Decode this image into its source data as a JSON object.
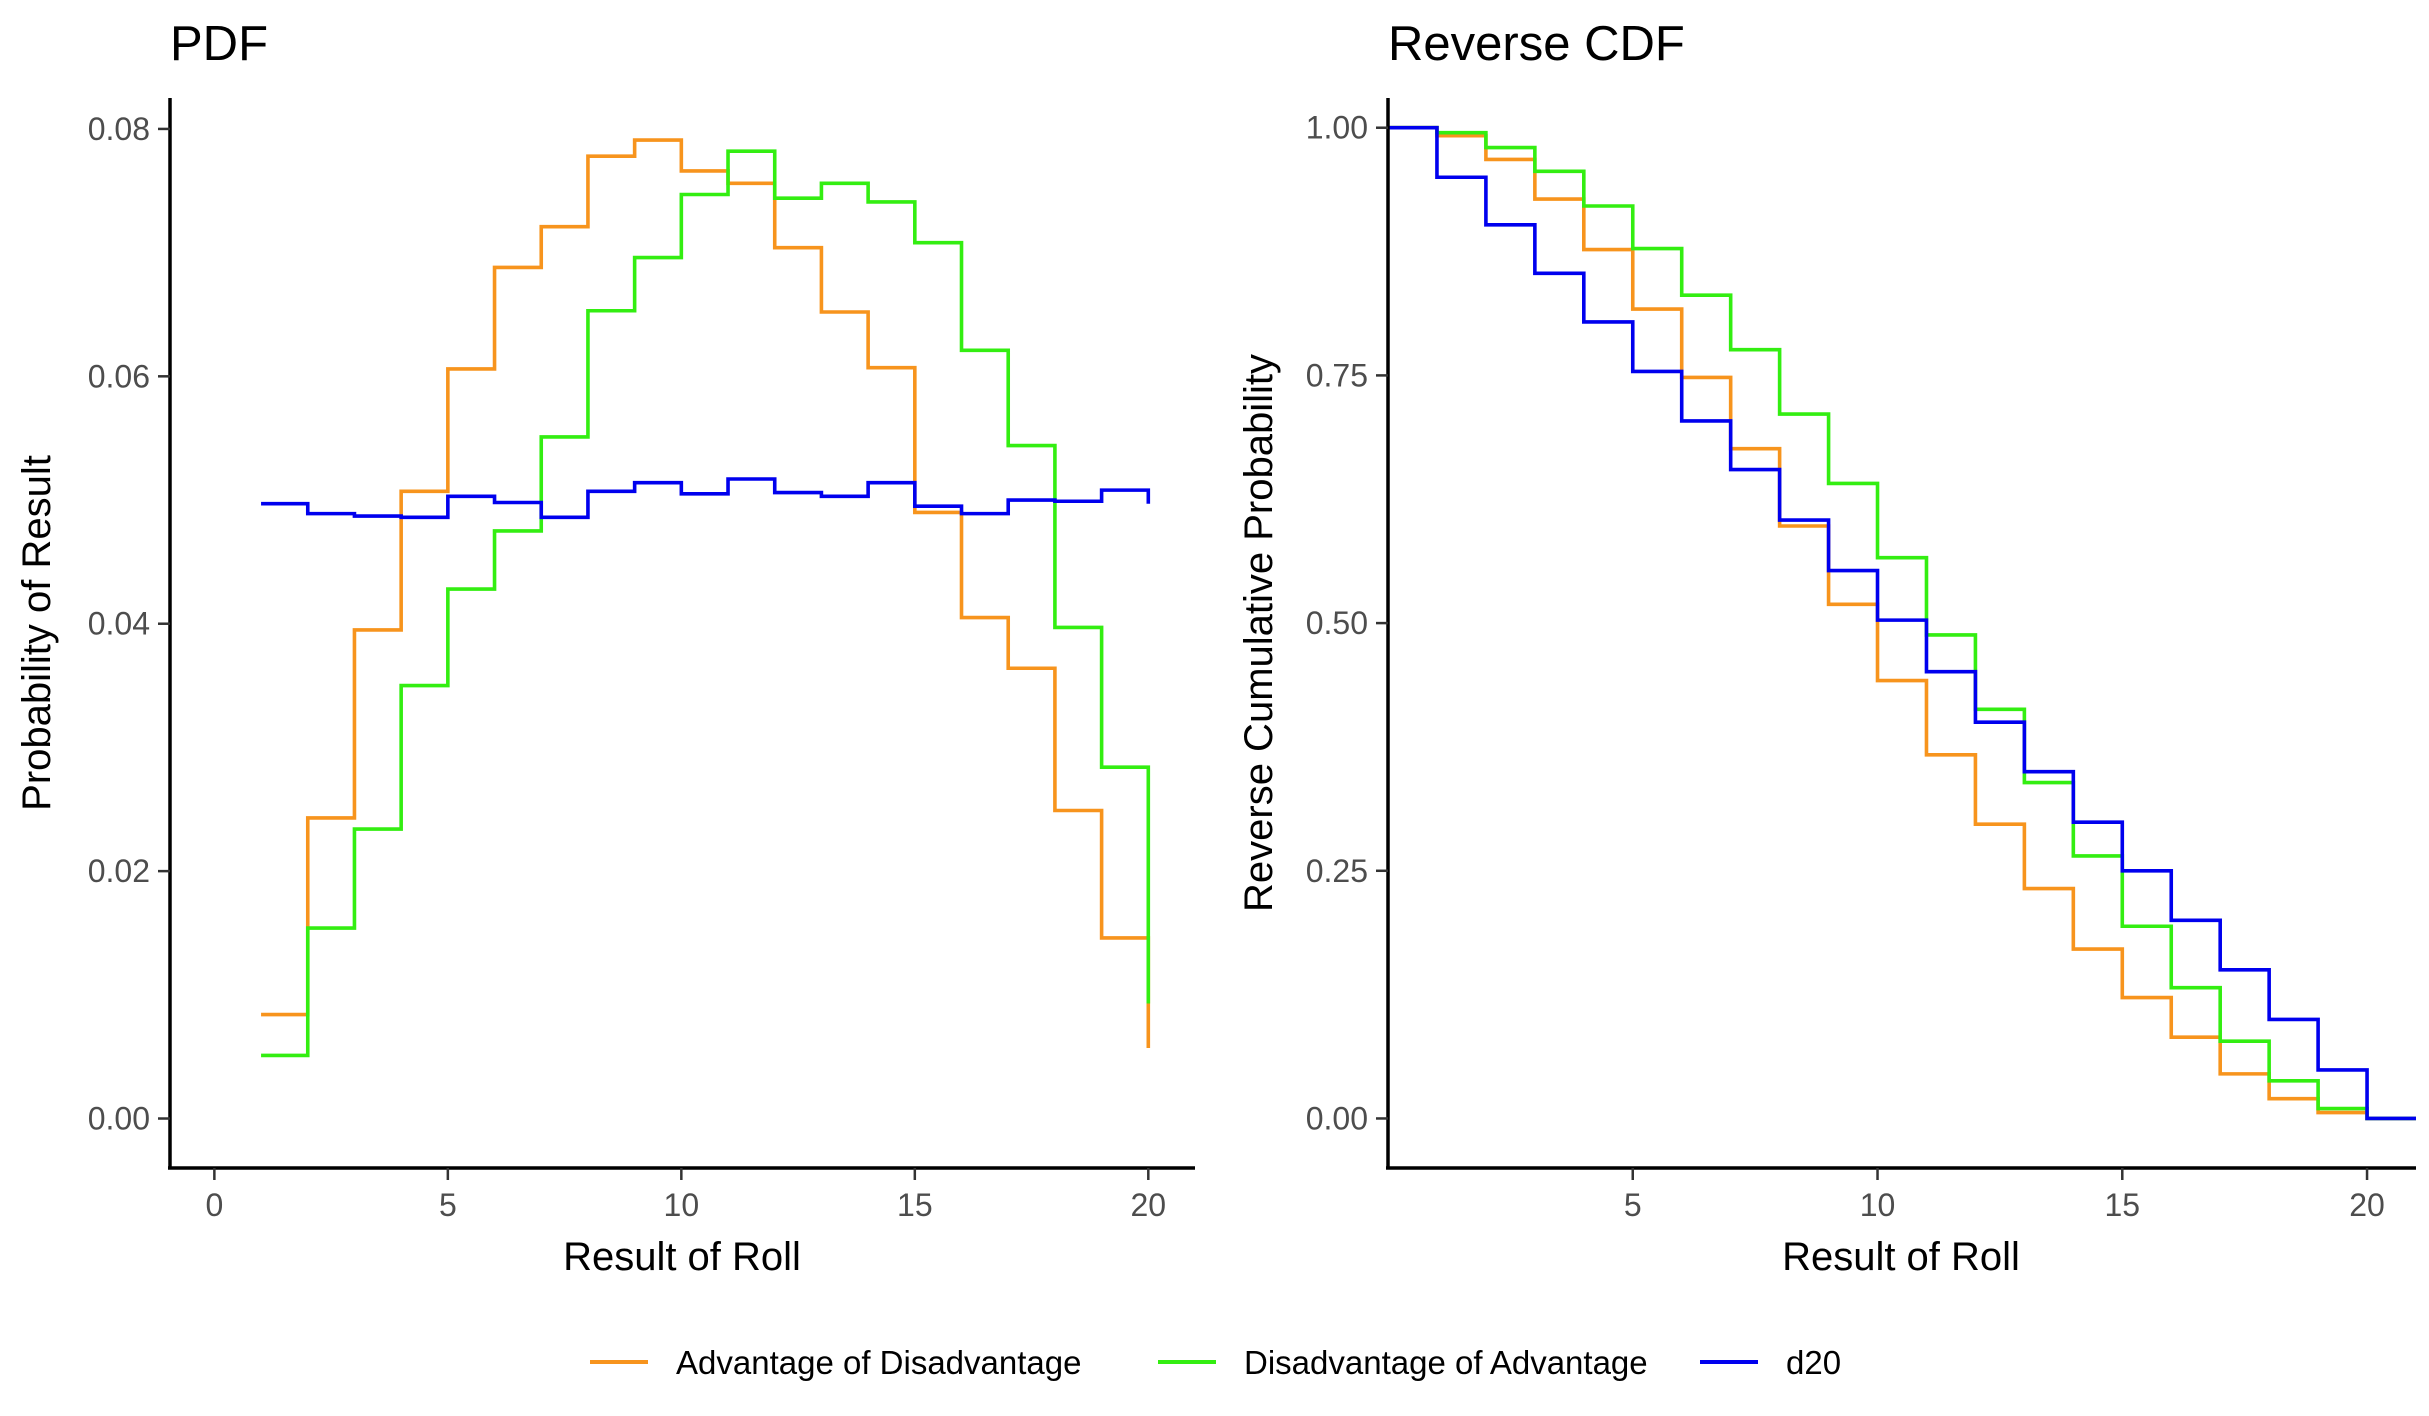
{
  "chart_data": [
    {
      "type": "line",
      "step": true,
      "title": "PDF",
      "xlabel": "Result of Roll",
      "ylabel": "Probability of Result",
      "xlim": [
        -0.95,
        21.0
      ],
      "ylim": [
        -0.004,
        0.0825
      ],
      "xticks": [
        0,
        5,
        10,
        15,
        20
      ],
      "xtick_labels": [
        "0",
        "5",
        "10",
        "15",
        "20"
      ],
      "yticks": [
        0,
        0.02,
        0.04,
        0.06,
        0.08
      ],
      "ytick_labels": [
        "0.00",
        "0.02",
        "0.04",
        "0.06",
        "0.08"
      ],
      "grid": false,
      "x": [
        1,
        2,
        3,
        4,
        5,
        6,
        7,
        8,
        9,
        10,
        11,
        12,
        13,
        14,
        15,
        16,
        17,
        18,
        19,
        20
      ],
      "series": [
        {
          "name": "Advantage of Disadvantage",
          "color": "#f7941d",
          "values": [
            0.0084,
            0.0243,
            0.0395,
            0.0507,
            0.0606,
            0.0688,
            0.0721,
            0.0778,
            0.0791,
            0.0766,
            0.0756,
            0.0704,
            0.0652,
            0.0607,
            0.049,
            0.0405,
            0.0364,
            0.0249,
            0.0146,
            0.0057
          ]
        },
        {
          "name": "Disadvantage of Advantage",
          "color": "#33ee11",
          "values": [
            0.0051,
            0.0154,
            0.0234,
            0.035,
            0.0428,
            0.0475,
            0.0551,
            0.0653,
            0.0696,
            0.0747,
            0.0782,
            0.0744,
            0.0756,
            0.0741,
            0.0708,
            0.0621,
            0.0544,
            0.0397,
            0.0284,
            0.0093
          ]
        },
        {
          "name": "d20",
          "color": "#0000ee",
          "values": [
            0.0497,
            0.0489,
            0.0487,
            0.0486,
            0.0503,
            0.0498,
            0.0486,
            0.0507,
            0.0514,
            0.0505,
            0.0517,
            0.0506,
            0.0503,
            0.0514,
            0.0495,
            0.0489,
            0.05,
            0.0499,
            0.0508,
            0.0497
          ]
        }
      ]
    },
    {
      "type": "line",
      "step": true,
      "title": "Reverse CDF",
      "xlabel": "Result of Roll",
      "ylabel": "Reverse Cumulative Probability",
      "xlim": [
        0,
        21
      ],
      "ylim": [
        -0.05,
        1.03
      ],
      "xticks": [
        5,
        10,
        15,
        20
      ],
      "xtick_labels": [
        "5",
        "10",
        "15",
        "20"
      ],
      "yticks": [
        0,
        0.25,
        0.5,
        0.75,
        1.0
      ],
      "ytick_labels": [
        "0.00",
        "0.25",
        "0.50",
        "0.75",
        "1.00"
      ],
      "grid": false,
      "x": [
        0,
        1,
        2,
        3,
        4,
        5,
        6,
        7,
        8,
        9,
        10,
        11,
        12,
        13,
        14,
        15,
        16,
        17,
        18,
        19,
        20,
        21
      ],
      "series": [
        {
          "name": "Advantage of Disadvantage",
          "color": "#f7941d",
          "values": [
            1.0,
            0.992,
            0.968,
            0.928,
            0.877,
            0.817,
            0.748,
            0.676,
            0.598,
            0.519,
            0.442,
            0.367,
            0.297,
            0.232,
            0.171,
            0.122,
            0.082,
            0.045,
            0.02,
            0.006,
            0.0,
            0.0
          ]
        },
        {
          "name": "Disadvantage of Advantage",
          "color": "#33ee11",
          "values": [
            1.0,
            0.995,
            0.98,
            0.956,
            0.921,
            0.878,
            0.831,
            0.776,
            0.711,
            0.641,
            0.566,
            0.488,
            0.413,
            0.339,
            0.265,
            0.194,
            0.132,
            0.078,
            0.038,
            0.01,
            0.0,
            0.0
          ]
        },
        {
          "name": "d20",
          "color": "#0000ee",
          "values": [
            1.0,
            0.95,
            0.902,
            0.853,
            0.804,
            0.754,
            0.704,
            0.655,
            0.604,
            0.553,
            0.503,
            0.451,
            0.4,
            0.35,
            0.299,
            0.25,
            0.2,
            0.15,
            0.1,
            0.049,
            0.0,
            0.0
          ]
        }
      ]
    }
  ],
  "legend": {
    "position": "bottom",
    "items": [
      {
        "label": "Advantage of Disadvantage",
        "color": "#f7941d"
      },
      {
        "label": "Disadvantage of Advantage",
        "color": "#33ee11"
      },
      {
        "label": "d20",
        "color": "#0000ee"
      }
    ]
  }
}
